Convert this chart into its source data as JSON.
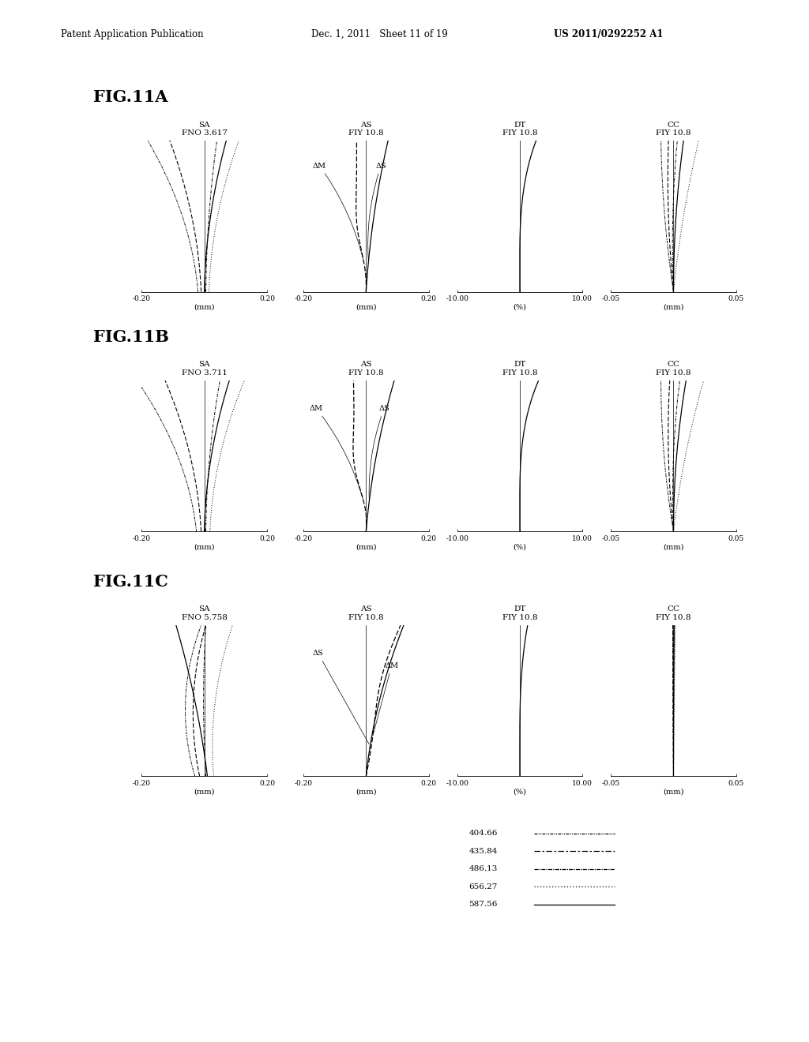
{
  "header_left": "Patent Application Publication",
  "header_mid": "Dec. 1, 2011   Sheet 11 of 19",
  "header_right": "US 2011/0292252 A1",
  "fig_labels": [
    "FIG.11A",
    "FIG.11B",
    "FIG.11C"
  ],
  "row_titles": [
    [
      "SA\nFNO 3.617",
      "AS\nFIY 10.8",
      "DT\nFIY 10.8",
      "CC\nFIY 10.8"
    ],
    [
      "SA\nFNO 3.711",
      "AS\nFIY 10.8",
      "DT\nFIY 10.8",
      "CC\nFIY 10.8"
    ],
    [
      "SA\nFNO 5.758",
      "AS\nFIY 10.8",
      "DT\nFIY 10.8",
      "CC\nFIY 10.8"
    ]
  ],
  "legend": [
    {
      "value": "404.66",
      "style": "dashdotdot"
    },
    {
      "value": "435.84",
      "style": "dashdash"
    },
    {
      "value": "486.13",
      "style": "dashdotdot2"
    },
    {
      "value": "656.27",
      "style": "dotted"
    },
    {
      "value": "587.56",
      "style": "solid"
    }
  ],
  "bg_color": "#ffffff",
  "line_color": "#000000"
}
